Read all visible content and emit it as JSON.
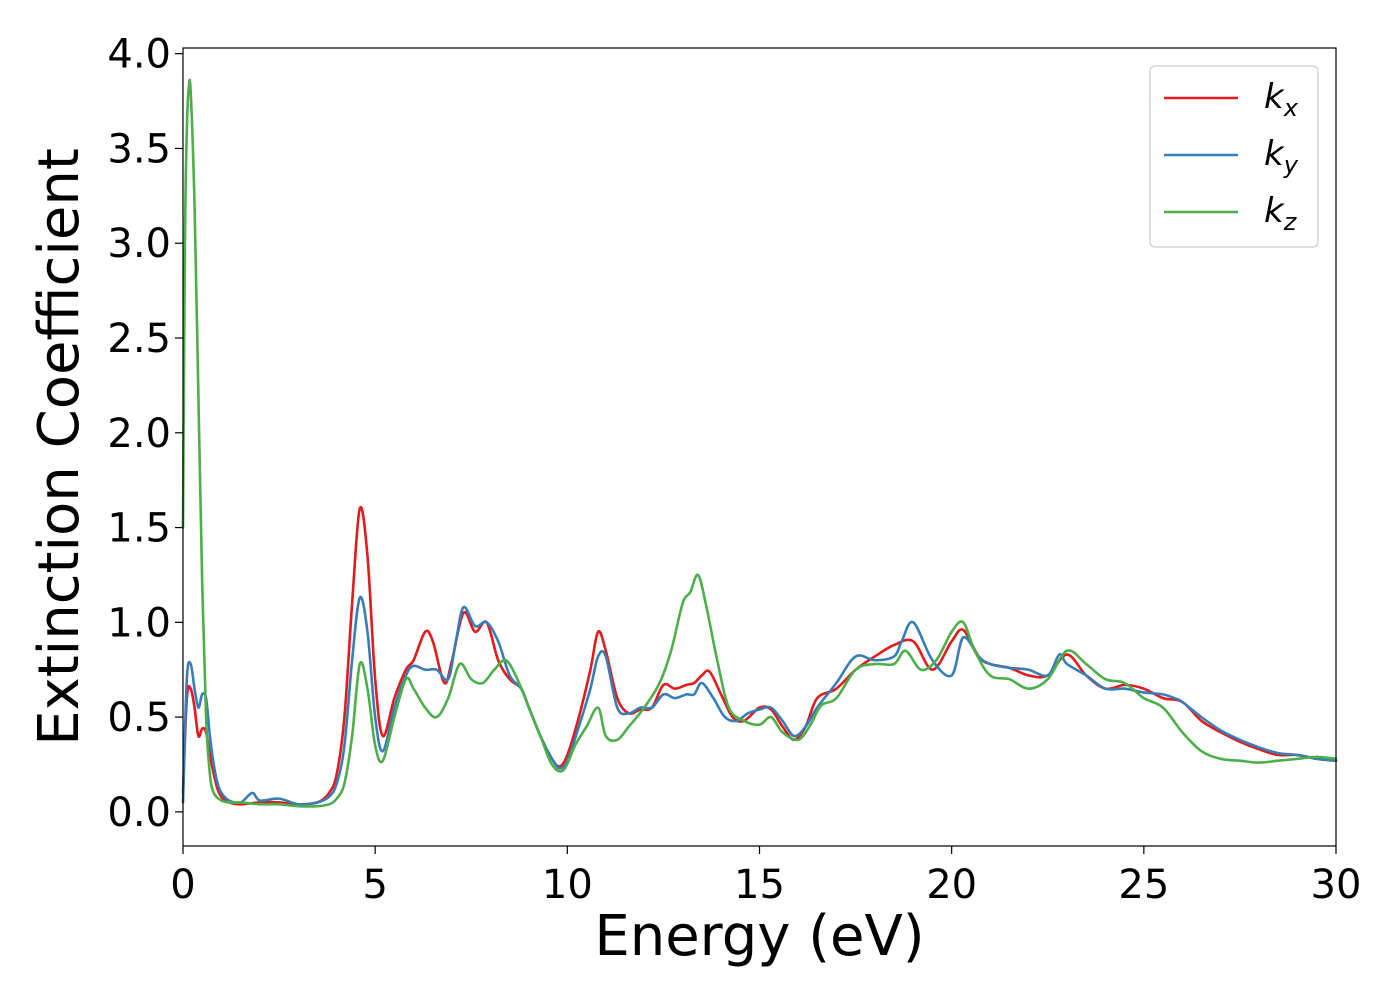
{
  "chart_data": {
    "type": "line",
    "xlabel": "Energy (eV)",
    "ylabel": "Extinction Coefficient",
    "xlim": [
      0,
      30
    ],
    "ylim": [
      -0.18,
      4.03
    ],
    "xticks": [
      0,
      5,
      10,
      15,
      20,
      25,
      30
    ],
    "yticks": [
      0.0,
      0.5,
      1.0,
      1.5,
      2.0,
      2.5,
      3.0,
      3.5,
      4.0
    ],
    "xtick_labels": [
      "0",
      "5",
      "10",
      "15",
      "20",
      "25",
      "30"
    ],
    "ytick_labels": [
      "0.0",
      "0.5",
      "1.0",
      "1.5",
      "2.0",
      "2.5",
      "3.0",
      "3.5",
      "4.0"
    ],
    "grid": false,
    "legend_position": "top-right",
    "series": [
      {
        "name": "k",
        "subscript": "x",
        "color": "#e41a1c",
        "x": [
          0,
          0.1,
          0.2,
          0.3,
          0.4,
          0.5,
          0.6,
          0.7,
          0.8,
          0.9,
          1.0,
          1.2,
          1.5,
          2.0,
          2.5,
          3.0,
          3.5,
          3.8,
          4.0,
          4.2,
          4.4,
          4.6,
          4.8,
          5.0,
          5.2,
          5.5,
          5.8,
          6.0,
          6.3,
          6.5,
          6.8,
          7.0,
          7.3,
          7.6,
          7.9,
          8.2,
          8.5,
          8.8,
          9.0,
          9.3,
          9.6,
          9.8,
          10.0,
          10.3,
          10.6,
          10.8,
          11.0,
          11.3,
          11.6,
          11.9,
          12.2,
          12.5,
          12.8,
          13.1,
          13.3,
          13.5,
          13.7,
          14.0,
          14.3,
          14.6,
          15.0,
          15.3,
          15.6,
          15.9,
          16.2,
          16.5,
          17.0,
          17.5,
          18.0,
          18.5,
          19.0,
          19.5,
          20.0,
          20.3,
          20.7,
          21.0,
          21.5,
          22.0,
          22.5,
          23.0,
          23.5,
          24.0,
          24.5,
          25.0,
          25.5,
          26.0,
          26.5,
          27.0,
          27.5,
          28.0,
          28.5,
          29.0,
          29.5,
          30.0
        ],
        "y": [
          0.1,
          0.6,
          0.65,
          0.55,
          0.4,
          0.44,
          0.42,
          0.3,
          0.2,
          0.12,
          0.08,
          0.05,
          0.04,
          0.05,
          0.05,
          0.04,
          0.05,
          0.1,
          0.2,
          0.5,
          1.1,
          1.6,
          1.35,
          0.7,
          0.4,
          0.6,
          0.75,
          0.8,
          0.95,
          0.9,
          0.68,
          0.8,
          1.05,
          0.95,
          1.0,
          0.8,
          0.7,
          0.65,
          0.55,
          0.4,
          0.28,
          0.24,
          0.3,
          0.5,
          0.75,
          0.95,
          0.85,
          0.6,
          0.52,
          0.54,
          0.55,
          0.67,
          0.65,
          0.67,
          0.68,
          0.72,
          0.74,
          0.62,
          0.5,
          0.48,
          0.55,
          0.54,
          0.45,
          0.38,
          0.45,
          0.6,
          0.65,
          0.75,
          0.82,
          0.88,
          0.9,
          0.75,
          0.9,
          0.96,
          0.82,
          0.78,
          0.76,
          0.72,
          0.72,
          0.83,
          0.72,
          0.65,
          0.67,
          0.65,
          0.6,
          0.58,
          0.48,
          0.42,
          0.37,
          0.33,
          0.3,
          0.3,
          0.28,
          0.27
        ]
      },
      {
        "name": "k",
        "subscript": "y",
        "color": "#377eb8",
        "x": [
          0,
          0.1,
          0.2,
          0.3,
          0.4,
          0.5,
          0.6,
          0.7,
          0.8,
          0.9,
          1.0,
          1.2,
          1.5,
          1.8,
          2.0,
          2.5,
          3.0,
          3.5,
          3.8,
          4.0,
          4.2,
          4.4,
          4.6,
          4.8,
          5.0,
          5.2,
          5.5,
          5.8,
          6.0,
          6.3,
          6.6,
          6.9,
          7.1,
          7.3,
          7.6,
          7.9,
          8.2,
          8.5,
          8.8,
          9.0,
          9.3,
          9.6,
          9.8,
          10.0,
          10.3,
          10.6,
          10.8,
          11.0,
          11.3,
          11.6,
          11.9,
          12.2,
          12.5,
          12.8,
          13.1,
          13.3,
          13.5,
          13.8,
          14.1,
          14.4,
          14.7,
          15.0,
          15.3,
          15.6,
          15.9,
          16.2,
          16.5,
          17.0,
          17.5,
          18.0,
          18.5,
          18.7,
          19.0,
          19.5,
          20.0,
          20.3,
          20.7,
          21.0,
          21.5,
          22.0,
          22.5,
          22.8,
          23.0,
          23.5,
          24.0,
          24.5,
          25.0,
          25.5,
          25.8,
          26.0,
          26.5,
          27.0,
          27.5,
          28.0,
          28.5,
          29.0,
          29.5,
          30.0
        ],
        "y": [
          0.05,
          0.7,
          0.78,
          0.65,
          0.55,
          0.62,
          0.6,
          0.4,
          0.25,
          0.15,
          0.1,
          0.06,
          0.05,
          0.1,
          0.06,
          0.07,
          0.04,
          0.05,
          0.08,
          0.15,
          0.35,
          0.8,
          1.13,
          0.95,
          0.5,
          0.32,
          0.55,
          0.72,
          0.77,
          0.75,
          0.75,
          0.7,
          0.9,
          1.08,
          0.98,
          1.0,
          0.9,
          0.72,
          0.65,
          0.55,
          0.4,
          0.28,
          0.23,
          0.27,
          0.45,
          0.65,
          0.82,
          0.82,
          0.55,
          0.52,
          0.55,
          0.55,
          0.62,
          0.6,
          0.62,
          0.62,
          0.68,
          0.6,
          0.5,
          0.48,
          0.52,
          0.54,
          0.55,
          0.48,
          0.4,
          0.45,
          0.55,
          0.68,
          0.82,
          0.8,
          0.82,
          0.9,
          1.0,
          0.8,
          0.72,
          0.92,
          0.82,
          0.78,
          0.76,
          0.75,
          0.72,
          0.83,
          0.78,
          0.72,
          0.65,
          0.65,
          0.63,
          0.62,
          0.6,
          0.58,
          0.5,
          0.43,
          0.38,
          0.34,
          0.31,
          0.3,
          0.28,
          0.27
        ]
      },
      {
        "name": "k",
        "subscript": "z",
        "color": "#4daf4a",
        "x": [
          0,
          0.05,
          0.1,
          0.15,
          0.2,
          0.3,
          0.4,
          0.5,
          0.6,
          0.7,
          0.8,
          1.0,
          1.2,
          1.5,
          2.0,
          2.5,
          3.0,
          3.5,
          3.8,
          4.0,
          4.2,
          4.4,
          4.6,
          4.8,
          5.0,
          5.2,
          5.5,
          5.8,
          6.0,
          6.3,
          6.6,
          6.9,
          7.2,
          7.5,
          7.8,
          8.1,
          8.4,
          8.7,
          9.0,
          9.3,
          9.6,
          9.9,
          10.2,
          10.5,
          10.8,
          11.0,
          11.3,
          11.6,
          12.0,
          12.4,
          12.7,
          13.0,
          13.2,
          13.4,
          13.6,
          13.9,
          14.2,
          14.6,
          15.0,
          15.3,
          15.6,
          16.0,
          16.3,
          16.6,
          17.0,
          17.5,
          18.0,
          18.5,
          18.8,
          19.2,
          19.6,
          20.0,
          20.3,
          20.6,
          21.0,
          21.5,
          22.0,
          22.5,
          23.0,
          23.5,
          24.0,
          24.5,
          25.0,
          25.5,
          26.0,
          26.5,
          27.0,
          27.5,
          28.0,
          28.5,
          29.0,
          29.5,
          30.0
        ],
        "y": [
          1.5,
          3.0,
          3.6,
          3.82,
          3.8,
          3.2,
          2.2,
          1.2,
          0.5,
          0.2,
          0.1,
          0.06,
          0.05,
          0.05,
          0.04,
          0.04,
          0.03,
          0.03,
          0.04,
          0.07,
          0.15,
          0.4,
          0.78,
          0.65,
          0.35,
          0.27,
          0.5,
          0.7,
          0.65,
          0.55,
          0.5,
          0.6,
          0.78,
          0.7,
          0.68,
          0.75,
          0.8,
          0.7,
          0.55,
          0.4,
          0.25,
          0.22,
          0.35,
          0.45,
          0.55,
          0.4,
          0.38,
          0.45,
          0.55,
          0.68,
          0.85,
          1.1,
          1.16,
          1.25,
          1.1,
          0.8,
          0.55,
          0.48,
          0.46,
          0.5,
          0.42,
          0.38,
          0.45,
          0.56,
          0.6,
          0.75,
          0.78,
          0.78,
          0.85,
          0.75,
          0.8,
          0.95,
          1.0,
          0.85,
          0.72,
          0.7,
          0.65,
          0.7,
          0.85,
          0.78,
          0.7,
          0.68,
          0.6,
          0.55,
          0.42,
          0.32,
          0.28,
          0.27,
          0.26,
          0.27,
          0.28,
          0.29,
          0.28
        ]
      }
    ]
  }
}
